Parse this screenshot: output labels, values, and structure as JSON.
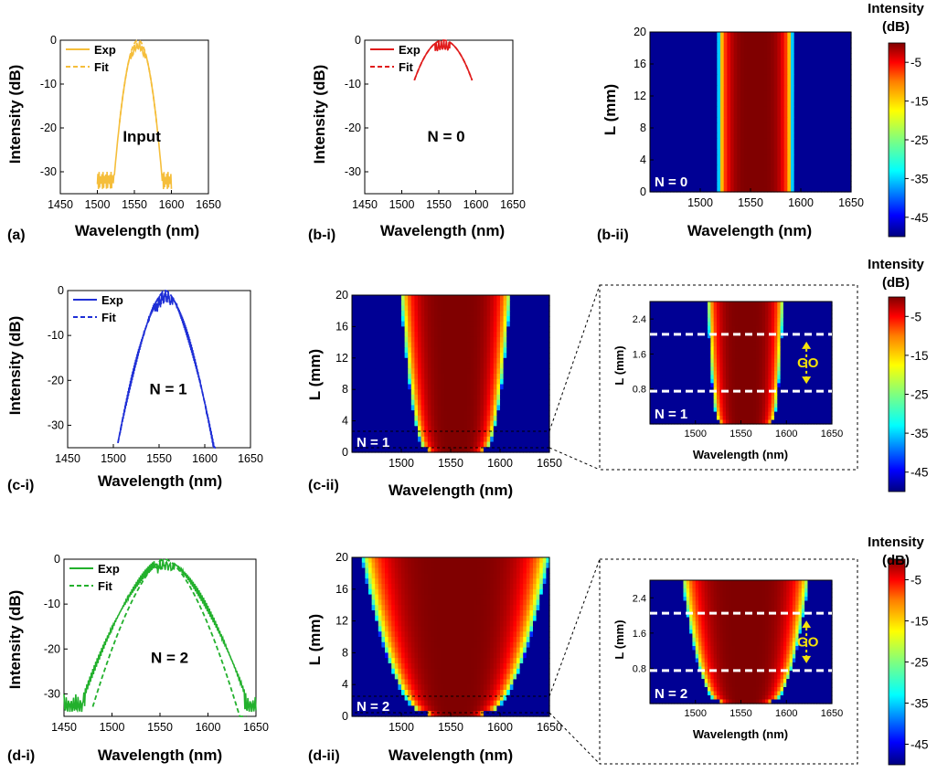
{
  "chart_data": [
    {
      "id": "a",
      "type": "line",
      "panel_label": "(a)",
      "xlabel": "Wavelength (nm)",
      "ylabel": "Intensity (dB)",
      "xlim": [
        1450,
        1650
      ],
      "ylim": [
        -35,
        0
      ],
      "xticks": [
        "1450",
        "1500",
        "1550",
        "1600",
        "1650"
      ],
      "yticks": [
        "0",
        "-10",
        "-20",
        "-30"
      ],
      "annotation": "Input",
      "color": "#f5be3b",
      "series": [
        {
          "name": "Exp",
          "style": "solid",
          "noise_floor": -32,
          "floor_range": [
            1500,
            1600
          ],
          "gauss_center": 1555,
          "gauss_sigma": 8.5,
          "gauss_exp": 2
        },
        {
          "name": "Fit",
          "style": "dashed",
          "range": [
            1530,
            1580
          ],
          "gauss_center": 1555,
          "gauss_sigma": 8.5,
          "gauss_exp": 2
        }
      ]
    },
    {
      "id": "b1",
      "type": "line",
      "panel_label": "(b-i)",
      "xlabel": "Wavelength (nm)",
      "ylabel": "Intensity (dB)",
      "xlim": [
        1450,
        1650
      ],
      "ylim": [
        -35,
        0
      ],
      "xticks": [
        "1450",
        "1500",
        "1550",
        "1600",
        "1650"
      ],
      "yticks": [
        "0",
        "-10",
        "-20",
        "-30"
      ],
      "annotation": "N = 0",
      "color": "#e01b1b",
      "series": [
        {
          "name": "Exp",
          "style": "solid",
          "range": [
            1517,
            1595
          ],
          "gauss_center": 1556,
          "gauss_sigma": 19,
          "gauss_exp": 2
        },
        {
          "name": "Fit",
          "style": "dashed",
          "range": [
            1517,
            1595
          ],
          "gauss_center": 1556,
          "gauss_sigma": 19,
          "gauss_exp": 2
        }
      ]
    },
    {
      "id": "b2",
      "type": "heatmap",
      "panel_label": "(b-ii)",
      "xlabel": "Wavelength (nm)",
      "ylabel": "L (mm)",
      "xlim": [
        1450,
        1650
      ],
      "ylim": [
        0,
        20
      ],
      "xticks": [
        "1500",
        "1550",
        "1600",
        "1650"
      ],
      "yticks": [
        "0",
        "4",
        "8",
        "12",
        "16",
        "20"
      ],
      "annotation": "N = 0",
      "width_profile": {
        "start": 37,
        "end": 37
      }
    },
    {
      "id": "c1",
      "type": "line",
      "panel_label": "(c-i)",
      "xlabel": "Wavelength (nm)",
      "ylabel": "Intensity (dB)",
      "xlim": [
        1450,
        1650
      ],
      "ylim": [
        -35,
        0
      ],
      "xticks": [
        "1450",
        "1500",
        "1550",
        "1600",
        "1650"
      ],
      "yticks": [
        "0",
        "-10",
        "-20",
        "-30"
      ],
      "annotation": "N = 1",
      "color": "#1f2fd6",
      "series": [
        {
          "name": "Exp",
          "style": "solid",
          "range": [
            1505,
            1612
          ],
          "tri_center": 1557,
          "tri_halfwidth": 53
        },
        {
          "name": "Fit",
          "style": "dashed",
          "range": [
            1505,
            1612
          ],
          "tri_center": 1557,
          "tri_halfwidth": 53
        }
      ]
    },
    {
      "id": "c2",
      "type": "heatmap",
      "panel_label": "(c-ii)",
      "xlabel": "Wavelength (nm)",
      "ylabel": "L (mm)",
      "xlim": [
        1450,
        1650
      ],
      "ylim": [
        0,
        20
      ],
      "xticks": [
        "1500",
        "1550",
        "1600",
        "1650"
      ],
      "yticks": [
        "0",
        "4",
        "8",
        "12",
        "16",
        "20"
      ],
      "annotation": "N = 1",
      "width_profile": {
        "start": 30,
        "end": 56
      }
    },
    {
      "id": "c3",
      "type": "heatmap",
      "panel_label": "",
      "xlabel": "Wavelength (nm)",
      "ylabel": "L (mm)",
      "xlim": [
        1450,
        1650
      ],
      "ylim": [
        0,
        2.8
      ],
      "xticks": [
        "1500",
        "1550",
        "1600",
        "1650"
      ],
      "yticks": [
        "0.8",
        "1.6",
        "2.4"
      ],
      "annotation": "N = 1",
      "region_label": "GO",
      "dashed_lines_L": [
        0.75,
        2.05
      ],
      "width_profile": {
        "start": 30,
        "end": 42
      }
    },
    {
      "id": "d1",
      "type": "line",
      "panel_label": "(d-i)",
      "xlabel": "Wavelength (nm)",
      "ylabel": "Intensity (dB)",
      "xlim": [
        1450,
        1650
      ],
      "ylim": [
        -35,
        0
      ],
      "xticks": [
        "1450",
        "1500",
        "1550",
        "1600",
        "1650"
      ],
      "yticks": [
        "0",
        "-10",
        "-20",
        "-30"
      ],
      "annotation": "N = 2",
      "color": "#22b02c",
      "series": [
        {
          "name": "Exp",
          "style": "solid",
          "range": [
            1450,
            1650
          ],
          "tri_center": 1555,
          "tri_halfwidth": 92
        },
        {
          "name": "Fit",
          "style": "dashed",
          "range": [
            1480,
            1640
          ],
          "tri_center": 1555,
          "tri_halfwidth": 78
        }
      ]
    },
    {
      "id": "d2",
      "type": "heatmap",
      "panel_label": "(d-ii)",
      "xlabel": "Wavelength (nm)",
      "ylabel": "L (mm)",
      "xlim": [
        1450,
        1650
      ],
      "ylim": [
        0,
        20
      ],
      "xticks": [
        "1500",
        "1550",
        "1600",
        "1650"
      ],
      "yticks": [
        "0",
        "4",
        "8",
        "12",
        "16",
        "20"
      ],
      "annotation": "N = 2",
      "width_profile": {
        "start": 30,
        "end": 95
      }
    },
    {
      "id": "d3",
      "type": "heatmap",
      "panel_label": "",
      "xlabel": "Wavelength (nm)",
      "ylabel": "L (mm)",
      "xlim": [
        1450,
        1650
      ],
      "ylim": [
        0,
        2.8
      ],
      "xticks": [
        "1500",
        "1550",
        "1600",
        "1650"
      ],
      "yticks": [
        "0.8",
        "1.6",
        "2.4"
      ],
      "annotation": "N = 2",
      "region_label": "GO",
      "dashed_lines_L": [
        0.75,
        2.05
      ],
      "width_profile": {
        "start": 30,
        "end": 70
      }
    }
  ],
  "colorbar": {
    "title_line1": "Intensity",
    "title_line2": "(dB)",
    "ticks": [
      "-5",
      "-15",
      "-25",
      "-35",
      "-45"
    ],
    "range": [
      -50,
      0
    ],
    "colors": [
      "#00007f",
      "#0000ff",
      "#007fff",
      "#00ffff",
      "#7fff7f",
      "#ffff00",
      "#ff7f00",
      "#ff0000",
      "#7f0000"
    ]
  }
}
